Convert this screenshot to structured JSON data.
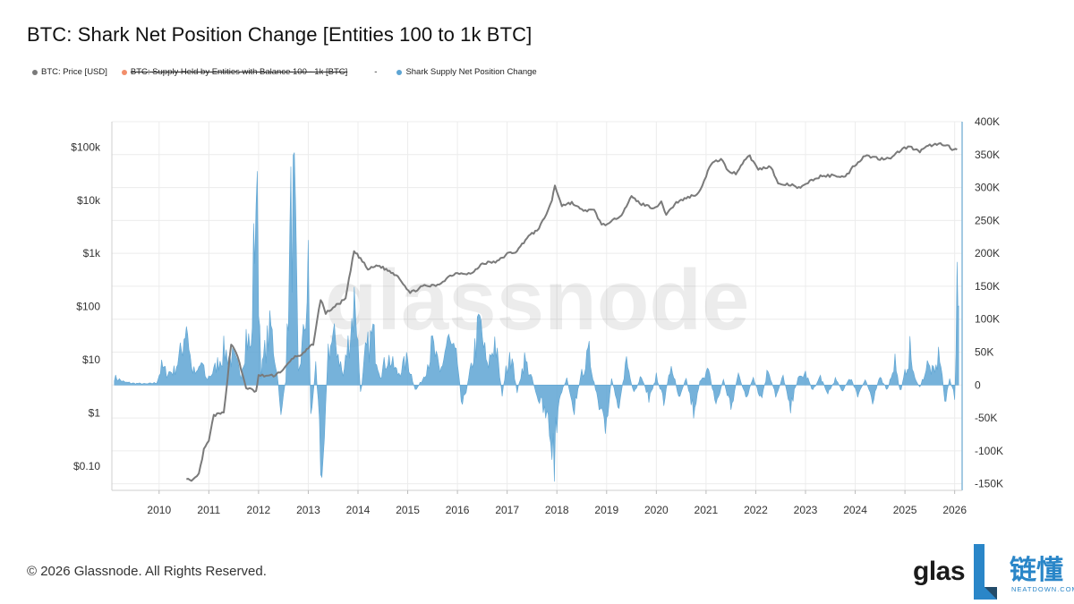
{
  "title": "BTC: Shark Net Position Change [Entities 100 to 1k BTC]",
  "legend": {
    "items": [
      {
        "label": "BTC: Price [USD]",
        "color": "#7a7a7a",
        "struck": false
      },
      {
        "label": "BTC: Supply Held by Entities with Balance 100 - 1k [BTC]",
        "color": "#f28e6b",
        "struck": true
      },
      {
        "label": "Shark Supply Net Position Change",
        "color": "#5ea5d3",
        "struck": false
      }
    ],
    "separator": "-"
  },
  "footer": "© 2026 Glassnode. All Rights Reserved.",
  "brand": {
    "logo_text": "glas",
    "cn_text": "链懂",
    "sub_text": "NEATDOWN.COM"
  },
  "watermark": "glassnode",
  "colors": {
    "price": "#7a7a7a",
    "bars": "#5ea5d3",
    "grid": "#ececec",
    "axis_right": "#86b8d8"
  },
  "chart_data": {
    "type": "line",
    "grid": true,
    "x_ticks": [
      "2010",
      "2011",
      "2012",
      "2013",
      "2014",
      "2015",
      "2016",
      "2017",
      "2018",
      "2019",
      "2020",
      "2021",
      "2022",
      "2023",
      "2024",
      "2025",
      "2026"
    ],
    "xlim": [
      2009.05,
      2026.15
    ],
    "left_axis": {
      "scale": "log",
      "ticks": [
        "$0.10",
        "$1",
        "$10",
        "$100",
        "$1k",
        "$10k",
        "$100k"
      ],
      "tick_values": [
        0.1,
        1,
        10,
        100,
        1000,
        10000,
        100000
      ],
      "ylim": [
        0.035,
        300000
      ]
    },
    "right_axis": {
      "scale": "linear",
      "ticks": [
        "-150K",
        "-100K",
        "-50K",
        "0",
        "50K",
        "100K",
        "150K",
        "200K",
        "250K",
        "300K",
        "350K",
        "400K"
      ],
      "tick_values": [
        -150000,
        -100000,
        -50000,
        0,
        50000,
        100000,
        150000,
        200000,
        250000,
        300000,
        350000,
        400000
      ],
      "ylim": [
        -160000,
        400000
      ]
    },
    "series": [
      {
        "name": "BTC: Price [USD]",
        "axis": "left",
        "points": [
          [
            2010.55,
            0.06
          ],
          [
            2010.65,
            0.05
          ],
          [
            2010.8,
            0.07
          ],
          [
            2010.9,
            0.2
          ],
          [
            2011.0,
            0.3
          ],
          [
            2011.1,
            0.9
          ],
          [
            2011.3,
            1.0
          ],
          [
            2011.45,
            20
          ],
          [
            2011.55,
            14
          ],
          [
            2011.75,
            3
          ],
          [
            2011.95,
            2.5
          ],
          [
            2012.0,
            5
          ],
          [
            2012.3,
            5
          ],
          [
            2012.5,
            6.5
          ],
          [
            2012.7,
            11
          ],
          [
            2012.9,
            13
          ],
          [
            2013.1,
            20
          ],
          [
            2013.25,
            140
          ],
          [
            2013.35,
            75
          ],
          [
            2013.5,
            95
          ],
          [
            2013.75,
            140
          ],
          [
            2013.92,
            1100
          ],
          [
            2014.05,
            800
          ],
          [
            2014.2,
            500
          ],
          [
            2014.4,
            600
          ],
          [
            2014.6,
            480
          ],
          [
            2014.8,
            380
          ],
          [
            2015.05,
            180
          ],
          [
            2015.3,
            240
          ],
          [
            2015.6,
            250
          ],
          [
            2015.85,
            380
          ],
          [
            2016.0,
            430
          ],
          [
            2016.3,
            420
          ],
          [
            2016.5,
            650
          ],
          [
            2016.8,
            700
          ],
          [
            2017.0,
            980
          ],
          [
            2017.2,
            1100
          ],
          [
            2017.4,
            2000
          ],
          [
            2017.6,
            2700
          ],
          [
            2017.75,
            4500
          ],
          [
            2017.9,
            10000
          ],
          [
            2017.96,
            19000
          ],
          [
            2018.1,
            8000
          ],
          [
            2018.3,
            9000
          ],
          [
            2018.5,
            6500
          ],
          [
            2018.75,
            6400
          ],
          [
            2018.9,
            3500
          ],
          [
            2019.05,
            3600
          ],
          [
            2019.3,
            5500
          ],
          [
            2019.5,
            11500
          ],
          [
            2019.7,
            8500
          ],
          [
            2019.95,
            7200
          ],
          [
            2020.1,
            9000
          ],
          [
            2020.2,
            5500
          ],
          [
            2020.4,
            9000
          ],
          [
            2020.6,
            11000
          ],
          [
            2020.85,
            13500
          ],
          [
            2021.0,
            29000
          ],
          [
            2021.1,
            48000
          ],
          [
            2021.3,
            60000
          ],
          [
            2021.45,
            35000
          ],
          [
            2021.6,
            32000
          ],
          [
            2021.8,
            62000
          ],
          [
            2021.88,
            67000
          ],
          [
            2022.05,
            38000
          ],
          [
            2022.3,
            44000
          ],
          [
            2022.45,
            20000
          ],
          [
            2022.7,
            19500
          ],
          [
            2022.9,
            16500
          ],
          [
            2023.05,
            22000
          ],
          [
            2023.3,
            28000
          ],
          [
            2023.6,
            29500
          ],
          [
            2023.8,
            27000
          ],
          [
            2023.95,
            42000
          ],
          [
            2024.2,
            70000
          ],
          [
            2024.5,
            60000
          ],
          [
            2024.75,
            65000
          ],
          [
            2024.95,
            95000
          ],
          [
            2025.1,
            100000
          ],
          [
            2025.3,
            82000
          ],
          [
            2025.5,
            108000
          ],
          [
            2025.75,
            115000
          ],
          [
            2025.85,
            110000
          ],
          [
            2025.95,
            88000
          ],
          [
            2026.05,
            90000
          ]
        ]
      },
      {
        "name": "Shark Supply Net Position Change",
        "axis": "right",
        "type": "area",
        "points": [
          [
            2009.1,
            14000
          ],
          [
            2009.3,
            5000
          ],
          [
            2009.5,
            3000
          ],
          [
            2009.75,
            2000
          ],
          [
            2009.95,
            4000
          ],
          [
            2010.05,
            32000
          ],
          [
            2010.15,
            22000
          ],
          [
            2010.3,
            25000
          ],
          [
            2010.45,
            60000
          ],
          [
            2010.55,
            120000
          ],
          [
            2010.65,
            30000
          ],
          [
            2010.75,
            18000
          ],
          [
            2010.85,
            40000
          ],
          [
            2010.95,
            10000
          ],
          [
            2011.1,
            25000
          ],
          [
            2011.3,
            60000
          ],
          [
            2011.5,
            45000
          ],
          [
            2011.65,
            20000
          ],
          [
            2011.75,
            90000
          ],
          [
            2011.85,
            60000
          ],
          [
            2011.95,
            365000
          ],
          [
            2012.05,
            20000
          ],
          [
            2012.15,
            70000
          ],
          [
            2012.25,
            100000
          ],
          [
            2012.35,
            40000
          ],
          [
            2012.45,
            -45000
          ],
          [
            2012.55,
            10000
          ],
          [
            2012.65,
            285000
          ],
          [
            2012.72,
            310000
          ],
          [
            2012.8,
            20000
          ],
          [
            2012.9,
            80000
          ],
          [
            2013.0,
            190000
          ],
          [
            2013.05,
            -60000
          ],
          [
            2013.15,
            35000
          ],
          [
            2013.25,
            -110000
          ],
          [
            2013.3,
            -115000
          ],
          [
            2013.4,
            65000
          ],
          [
            2013.55,
            80000
          ],
          [
            2013.7,
            15000
          ],
          [
            2013.85,
            100000
          ],
          [
            2013.95,
            160000
          ],
          [
            2014.05,
            -20000
          ],
          [
            2014.15,
            55000
          ],
          [
            2014.3,
            90000
          ],
          [
            2014.45,
            20000
          ],
          [
            2014.6,
            50000
          ],
          [
            2014.8,
            20000
          ],
          [
            2015.0,
            45000
          ],
          [
            2015.15,
            -10000
          ],
          [
            2015.3,
            10000
          ],
          [
            2015.5,
            70000
          ],
          [
            2015.65,
            20000
          ],
          [
            2015.8,
            80000
          ],
          [
            2016.0,
            40000
          ],
          [
            2016.1,
            -40000
          ],
          [
            2016.25,
            20000
          ],
          [
            2016.45,
            110000
          ],
          [
            2016.6,
            30000
          ],
          [
            2016.75,
            80000
          ],
          [
            2016.9,
            -15000
          ],
          [
            2017.05,
            65000
          ],
          [
            2017.2,
            -10000
          ],
          [
            2017.35,
            45000
          ],
          [
            2017.5,
            10000
          ],
          [
            2017.65,
            -30000
          ],
          [
            2017.8,
            -60000
          ],
          [
            2017.95,
            -125000
          ],
          [
            2018.05,
            -20000
          ],
          [
            2018.2,
            10000
          ],
          [
            2018.35,
            -40000
          ],
          [
            2018.5,
            20000
          ],
          [
            2018.65,
            55000
          ],
          [
            2018.8,
            -20000
          ],
          [
            2018.95,
            -95000
          ],
          [
            2019.1,
            10000
          ],
          [
            2019.25,
            -35000
          ],
          [
            2019.4,
            45000
          ],
          [
            2019.55,
            -20000
          ],
          [
            2019.7,
            20000
          ],
          [
            2019.85,
            -25000
          ],
          [
            2020.0,
            15000
          ],
          [
            2020.15,
            -30000
          ],
          [
            2020.3,
            35000
          ],
          [
            2020.45,
            -20000
          ],
          [
            2020.6,
            10000
          ],
          [
            2020.75,
            -45000
          ],
          [
            2020.9,
            15000
          ],
          [
            2021.05,
            25000
          ],
          [
            2021.2,
            -35000
          ],
          [
            2021.35,
            10000
          ],
          [
            2021.5,
            -40000
          ],
          [
            2021.65,
            20000
          ],
          [
            2021.8,
            -25000
          ],
          [
            2021.95,
            15000
          ],
          [
            2022.1,
            -30000
          ],
          [
            2022.25,
            30000
          ],
          [
            2022.4,
            -20000
          ],
          [
            2022.55,
            15000
          ],
          [
            2022.7,
            -35000
          ],
          [
            2022.85,
            10000
          ],
          [
            2023.0,
            20000
          ],
          [
            2023.15,
            -10000
          ],
          [
            2023.3,
            15000
          ],
          [
            2023.45,
            -15000
          ],
          [
            2023.6,
            10000
          ],
          [
            2023.75,
            -10000
          ],
          [
            2023.9,
            15000
          ],
          [
            2024.05,
            -20000
          ],
          [
            2024.2,
            10000
          ],
          [
            2024.35,
            -25000
          ],
          [
            2024.5,
            15000
          ],
          [
            2024.65,
            -10000
          ],
          [
            2024.8,
            45000
          ],
          [
            2024.9,
            -15000
          ],
          [
            2025.0,
            20000
          ],
          [
            2025.1,
            60000
          ],
          [
            2025.2,
            10000
          ],
          [
            2025.3,
            -5000
          ],
          [
            2025.45,
            35000
          ],
          [
            2025.6,
            20000
          ],
          [
            2025.7,
            60000
          ],
          [
            2025.8,
            -30000
          ],
          [
            2025.9,
            10000
          ],
          [
            2026.0,
            -20000
          ],
          [
            2026.05,
            150000
          ],
          [
            2026.08,
            120000
          ]
        ]
      }
    ]
  }
}
